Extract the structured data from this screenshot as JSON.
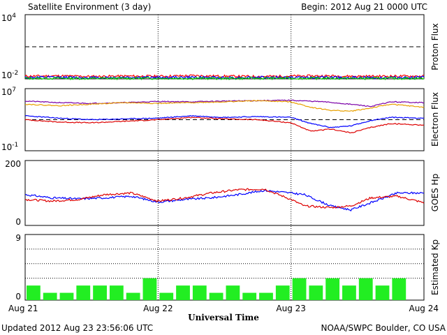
{
  "header": {
    "title": "Satellite Environment (3 day)",
    "begin": "Begin:  2012 Aug 21 0000 UTC"
  },
  "footer": {
    "updated": "Updated 2012 Aug 23 23:56:06 UTC",
    "source": "NOAA/SWPC Boulder, CO USA",
    "xlabel": "Universal Time"
  },
  "xaxis": {
    "ticks": [
      "Aug 21",
      "Aug 22",
      "Aug 23",
      "Aug 24"
    ]
  },
  "chart_data": [
    {
      "type": "line",
      "ylabel": "Proton Flux",
      "yscale": "log",
      "ylim_exp": [
        -2,
        4
      ],
      "ytick_exps": [
        "4",
        "-2"
      ],
      "threshold_exp": 1,
      "x_range_days": [
        0,
        3
      ],
      "series": [
        {
          "color": "#ff0000",
          "x": [
            0,
            0.25,
            0.5,
            0.75,
            1,
            1.25,
            1.5,
            1.75,
            2,
            2.25,
            2.5,
            2.75,
            3
          ],
          "log_values": [
            -1.75,
            -1.72,
            -1.78,
            -1.74,
            -1.76,
            -1.7,
            -1.75,
            -1.78,
            -1.74,
            -1.72,
            -1.76,
            -1.75,
            -1.74
          ]
        },
        {
          "color": "#0000ff",
          "x": [
            0,
            0.25,
            0.5,
            0.75,
            1,
            1.25,
            1.5,
            1.75,
            2,
            2.25,
            2.5,
            2.75,
            3
          ],
          "log_values": [
            -1.87,
            -1.85,
            -1.88,
            -1.86,
            -1.87,
            -1.85,
            -1.88,
            -1.86,
            -1.87,
            -1.86,
            -1.88,
            -1.87,
            -1.86
          ]
        },
        {
          "color": "#00cc00",
          "x": [
            0,
            0.25,
            0.5,
            0.75,
            1,
            1.25,
            1.5,
            1.75,
            2,
            2.25,
            2.5,
            2.75,
            3
          ],
          "log_values": [
            -1.95,
            -1.94,
            -1.96,
            -1.95,
            -1.94,
            -1.95,
            -1.96,
            -1.95,
            -1.94,
            -1.95,
            -1.96,
            -1.95,
            -1.95
          ]
        }
      ]
    },
    {
      "type": "line",
      "ylabel": "Electron Flux",
      "yscale": "log",
      "ylim_exp": [
        -1,
        7
      ],
      "ytick_exps": [
        "7",
        "-1"
      ],
      "threshold_exp": 3,
      "x_range_days": [
        0,
        3
      ],
      "series": [
        {
          "color": "#7a00a8",
          "x": [
            0,
            0.25,
            0.5,
            0.75,
            1,
            1.25,
            1.5,
            1.75,
            2,
            2.25,
            2.5,
            2.6,
            2.75,
            3
          ],
          "log_values": [
            5.4,
            5.2,
            5.1,
            5.2,
            5.35,
            5.3,
            5.4,
            5.45,
            5.5,
            5.3,
            4.9,
            4.7,
            5.3,
            5.2
          ]
        },
        {
          "color": "#e8a000",
          "x": [
            0,
            0.25,
            0.5,
            0.75,
            1,
            1.25,
            1.5,
            1.75,
            2,
            2.15,
            2.3,
            2.45,
            2.6,
            2.75,
            3
          ],
          "log_values": [
            5.0,
            4.8,
            5.0,
            5.2,
            5.1,
            5.2,
            5.3,
            5.45,
            5.3,
            4.6,
            4.2,
            4.1,
            4.5,
            5.0,
            4.6
          ]
        },
        {
          "color": "#0000ff",
          "x": [
            0,
            0.25,
            0.5,
            0.75,
            1,
            1.25,
            1.5,
            1.75,
            2,
            2.15,
            2.3,
            2.45,
            2.6,
            2.75,
            3
          ],
          "log_values": [
            3.5,
            3.2,
            3.0,
            3.1,
            3.2,
            3.5,
            3.3,
            3.4,
            3.3,
            2.5,
            2.0,
            2.2,
            2.9,
            3.3,
            3.2
          ]
        },
        {
          "color": "#dd0000",
          "x": [
            0,
            0.25,
            0.5,
            0.75,
            1,
            1.25,
            1.5,
            1.75,
            2,
            2.15,
            2.3,
            2.45,
            2.6,
            2.75,
            3
          ],
          "log_values": [
            3.0,
            2.7,
            2.6,
            2.8,
            3.0,
            3.3,
            3.1,
            3.0,
            2.6,
            1.5,
            1.8,
            1.3,
            2.0,
            2.5,
            2.3
          ]
        }
      ]
    },
    {
      "type": "line",
      "ylabel": "GOES Hp",
      "ylim": [
        0,
        200
      ],
      "yticks": [
        "200",
        "0"
      ],
      "x_range_days": [
        0,
        3
      ],
      "series": [
        {
          "color": "#0000ff",
          "x": [
            0,
            0.2,
            0.4,
            0.6,
            0.8,
            1,
            1.2,
            1.4,
            1.6,
            1.8,
            2,
            2.1,
            2.3,
            2.45,
            2.6,
            2.8,
            3
          ],
          "values": [
            95,
            85,
            82,
            85,
            90,
            72,
            80,
            85,
            95,
            108,
            100,
            95,
            60,
            48,
            70,
            100,
            100
          ]
        },
        {
          "color": "#dd0000",
          "x": [
            0,
            0.2,
            0.4,
            0.6,
            0.8,
            1,
            1.2,
            1.4,
            1.6,
            1.8,
            2,
            2.1,
            2.3,
            2.45,
            2.6,
            2.8,
            3
          ],
          "values": [
            80,
            75,
            80,
            95,
            100,
            75,
            85,
            100,
            110,
            112,
            80,
            60,
            55,
            60,
            85,
            90,
            70
          ]
        }
      ]
    },
    {
      "type": "bar",
      "ylabel": "Estimated Kp",
      "ylim": [
        0,
        9
      ],
      "yticks": [
        "9",
        "0"
      ],
      "color": "#22ee22",
      "values": [
        2,
        1,
        1,
        2,
        2,
        2,
        1,
        3,
        1,
        2,
        2,
        1,
        2,
        1,
        1,
        2,
        3,
        2,
        3,
        2,
        3,
        2,
        3,
        0
      ]
    }
  ]
}
